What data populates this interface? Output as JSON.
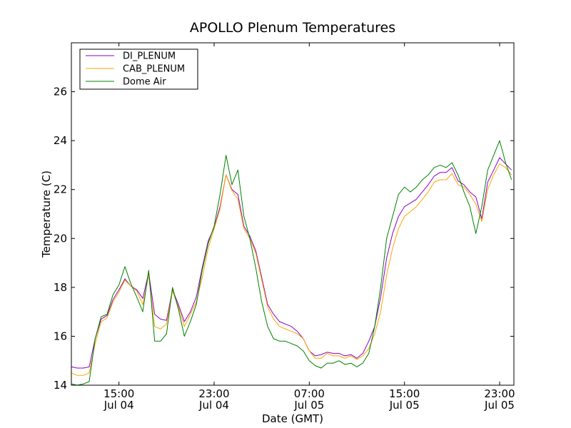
{
  "chart_data": {
    "type": "line",
    "title": "APOLLO Plenum Temperatures",
    "xlabel": "Date (GMT)",
    "ylabel": "Temperature (C)",
    "x_unit": "hours since Jul 04 11:00 GMT",
    "xlim": [
      0,
      37.2
    ],
    "ylim": [
      14,
      28
    ],
    "grid": false,
    "legend_position": "top-left",
    "x_ticks": [
      {
        "x": 4,
        "time": "15:00",
        "date": "Jul 04"
      },
      {
        "x": 12,
        "time": "23:00",
        "date": "Jul 04"
      },
      {
        "x": 20,
        "time": "07:00",
        "date": "Jul 05"
      },
      {
        "x": 28,
        "time": "15:00",
        "date": "Jul 05"
      },
      {
        "x": 36,
        "time": "23:00",
        "date": "Jul 05"
      }
    ],
    "y_ticks": [
      {
        "y": 14,
        "label": "14"
      },
      {
        "y": 16,
        "label": "16"
      },
      {
        "y": 18,
        "label": "18"
      },
      {
        "y": 20,
        "label": "20"
      },
      {
        "y": 22,
        "label": "22"
      },
      {
        "y": 24,
        "label": "24"
      },
      {
        "y": 26,
        "label": "26"
      }
    ],
    "x": [
      0,
      0.5,
      1,
      1.5,
      2,
      2.5,
      3,
      3.5,
      4,
      4.5,
      5,
      5.5,
      6,
      6.5,
      7,
      7.5,
      8,
      8.5,
      9,
      9.5,
      10,
      10.5,
      11,
      11.5,
      12,
      12.5,
      13,
      13.5,
      14,
      14.5,
      15,
      15.5,
      16,
      16.5,
      17,
      17.5,
      18,
      18.5,
      19,
      19.5,
      20,
      20.5,
      21,
      21.5,
      22,
      22.5,
      23,
      23.5,
      24,
      24.5,
      25,
      25.5,
      26,
      26.5,
      27,
      27.5,
      28,
      28.5,
      29,
      29.5,
      30,
      30.5,
      31,
      31.5,
      32,
      32.5,
      33,
      33.5,
      34,
      34.5,
      35,
      35.5,
      36,
      36.5,
      37
    ],
    "series": [
      {
        "name": "DI_PLENUM",
        "color": "#8b00c8",
        "values": [
          14.75,
          14.7,
          14.7,
          14.75,
          15.9,
          16.7,
          16.85,
          17.5,
          17.9,
          18.35,
          18.05,
          17.9,
          17.55,
          18.6,
          16.9,
          16.7,
          16.65,
          17.9,
          17.3,
          16.6,
          17.0,
          17.6,
          18.8,
          19.9,
          20.45,
          21.3,
          22.6,
          22.0,
          21.8,
          20.5,
          20.1,
          19.5,
          18.4,
          17.3,
          16.9,
          16.6,
          16.5,
          16.4,
          16.2,
          15.9,
          15.4,
          15.2,
          15.25,
          15.35,
          15.3,
          15.3,
          15.2,
          15.25,
          15.1,
          15.3,
          15.8,
          16.4,
          17.6,
          19.2,
          20.2,
          20.9,
          21.3,
          21.45,
          21.6,
          21.9,
          22.2,
          22.55,
          22.7,
          22.7,
          22.9,
          22.35,
          22.2,
          21.9,
          21.7,
          20.8,
          22.3,
          22.8,
          23.3,
          23.05,
          22.8
        ]
      },
      {
        "name": "CAB_PLENUM",
        "color": "#ffa500",
        "values": [
          14.5,
          14.4,
          14.4,
          14.5,
          15.7,
          16.6,
          16.75,
          17.4,
          17.8,
          18.3,
          18.05,
          17.85,
          17.3,
          18.5,
          16.4,
          16.3,
          16.5,
          17.85,
          17.2,
          16.4,
          16.9,
          17.4,
          18.4,
          19.6,
          20.4,
          21.2,
          22.6,
          21.95,
          21.6,
          20.4,
          20.0,
          19.4,
          18.3,
          17.2,
          16.7,
          16.4,
          16.3,
          16.2,
          16.1,
          15.9,
          15.4,
          15.1,
          15.1,
          15.3,
          15.2,
          15.2,
          15.1,
          15.2,
          15.05,
          15.2,
          15.5,
          16.1,
          17.0,
          18.5,
          19.6,
          20.4,
          20.9,
          21.1,
          21.3,
          21.6,
          21.9,
          22.3,
          22.4,
          22.4,
          22.65,
          22.2,
          22.1,
          21.8,
          21.4,
          20.7,
          22.0,
          22.6,
          23.05,
          22.9,
          22.6
        ]
      },
      {
        "name": "Dome Air",
        "color": "#008000",
        "values": [
          14.05,
          14.0,
          14.05,
          14.15,
          15.9,
          16.8,
          16.9,
          17.7,
          18.1,
          18.85,
          18.15,
          17.6,
          17.0,
          18.7,
          15.8,
          15.8,
          16.1,
          18.0,
          17.1,
          16.0,
          16.6,
          17.3,
          18.7,
          19.8,
          20.5,
          21.8,
          23.4,
          22.2,
          22.8,
          20.9,
          20.0,
          18.8,
          17.4,
          16.4,
          15.9,
          15.8,
          15.8,
          15.7,
          15.6,
          15.4,
          15.0,
          14.8,
          14.7,
          14.9,
          14.9,
          15.0,
          14.85,
          14.9,
          14.75,
          14.9,
          15.3,
          16.4,
          18.0,
          20.0,
          20.9,
          21.8,
          22.1,
          21.9,
          22.1,
          22.4,
          22.6,
          22.9,
          23.0,
          22.9,
          23.1,
          22.6,
          21.9,
          21.3,
          20.2,
          21.3,
          22.8,
          23.4,
          24.0,
          23.1,
          22.4
        ]
      }
    ]
  }
}
